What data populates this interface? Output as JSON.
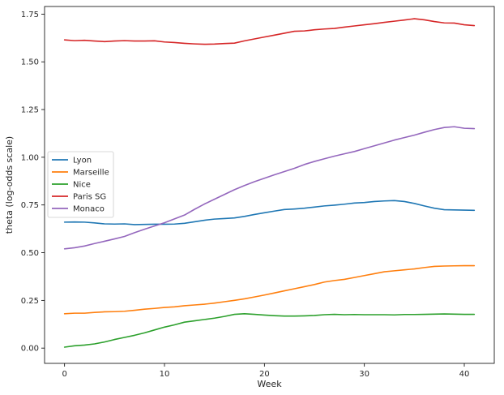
{
  "chart_data": {
    "type": "line",
    "xlabel": "Week",
    "ylabel": "theta (log-odds scale)",
    "xlim": [
      -2,
      43
    ],
    "ylim": [
      -0.08,
      1.79
    ],
    "xticks": [
      0,
      10,
      20,
      30,
      40
    ],
    "yticks": [
      0.0,
      0.25,
      0.5,
      0.75,
      1.0,
      1.25,
      1.5,
      1.75
    ],
    "ytick_labels": [
      "0.00",
      "0.25",
      "0.50",
      "0.75",
      "1.00",
      "1.25",
      "1.50",
      "1.75"
    ],
    "grid": false,
    "legend_position": "center-left",
    "x": [
      0,
      1,
      2,
      3,
      4,
      5,
      6,
      7,
      8,
      9,
      10,
      11,
      12,
      13,
      14,
      15,
      16,
      17,
      18,
      19,
      20,
      21,
      22,
      23,
      24,
      25,
      26,
      27,
      28,
      29,
      30,
      31,
      32,
      33,
      34,
      35,
      36,
      37,
      38,
      39,
      40,
      41
    ],
    "series": [
      {
        "name": "Lyon",
        "color": "#1f77b4",
        "values": [
          0.66,
          0.661,
          0.66,
          0.656,
          0.651,
          0.65,
          0.651,
          0.647,
          0.648,
          0.649,
          0.649,
          0.65,
          0.654,
          0.662,
          0.67,
          0.676,
          0.679,
          0.682,
          0.69,
          0.7,
          0.709,
          0.718,
          0.726,
          0.729,
          0.733,
          0.739,
          0.745,
          0.749,
          0.754,
          0.76,
          0.763,
          0.768,
          0.771,
          0.773,
          0.768,
          0.758,
          0.745,
          0.733,
          0.725,
          0.724,
          0.723,
          0.722
        ]
      },
      {
        "name": "Marseille",
        "color": "#ff7f0e",
        "values": [
          0.18,
          0.183,
          0.183,
          0.187,
          0.19,
          0.191,
          0.193,
          0.198,
          0.204,
          0.208,
          0.213,
          0.216,
          0.222,
          0.226,
          0.23,
          0.236,
          0.243,
          0.25,
          0.258,
          0.268,
          0.278,
          0.289,
          0.3,
          0.311,
          0.322,
          0.333,
          0.346,
          0.354,
          0.36,
          0.37,
          0.38,
          0.39,
          0.4,
          0.405,
          0.41,
          0.415,
          0.422,
          0.428,
          0.43,
          0.431,
          0.432,
          0.432
        ]
      },
      {
        "name": "Nice",
        "color": "#2ca02c",
        "values": [
          0.005,
          0.012,
          0.016,
          0.022,
          0.032,
          0.045,
          0.056,
          0.067,
          0.08,
          0.095,
          0.11,
          0.122,
          0.136,
          0.143,
          0.15,
          0.157,
          0.166,
          0.177,
          0.18,
          0.177,
          0.173,
          0.17,
          0.168,
          0.168,
          0.169,
          0.171,
          0.175,
          0.177,
          0.175,
          0.176,
          0.175,
          0.175,
          0.175,
          0.174,
          0.176,
          0.176,
          0.177,
          0.178,
          0.179,
          0.178,
          0.177,
          0.177
        ]
      },
      {
        "name": "Paris SG",
        "color": "#d62728",
        "values": [
          1.615,
          1.611,
          1.613,
          1.609,
          1.606,
          1.609,
          1.611,
          1.609,
          1.609,
          1.61,
          1.604,
          1.601,
          1.597,
          1.594,
          1.592,
          1.593,
          1.596,
          1.598,
          1.61,
          1.62,
          1.63,
          1.64,
          1.65,
          1.66,
          1.662,
          1.668,
          1.672,
          1.675,
          1.682,
          1.688,
          1.694,
          1.7,
          1.707,
          1.713,
          1.719,
          1.726,
          1.72,
          1.711,
          1.704,
          1.703,
          1.694,
          1.69
        ]
      },
      {
        "name": "Monaco",
        "color": "#9467bd",
        "values": [
          0.52,
          0.526,
          0.535,
          0.548,
          0.56,
          0.572,
          0.585,
          0.605,
          0.623,
          0.64,
          0.657,
          0.677,
          0.697,
          0.727,
          0.755,
          0.78,
          0.805,
          0.83,
          0.852,
          0.872,
          0.89,
          0.908,
          0.925,
          0.942,
          0.962,
          0.978,
          0.992,
          1.006,
          1.018,
          1.03,
          1.045,
          1.06,
          1.075,
          1.09,
          1.103,
          1.116,
          1.131,
          1.145,
          1.156,
          1.16,
          1.152,
          1.15
        ]
      }
    ]
  }
}
